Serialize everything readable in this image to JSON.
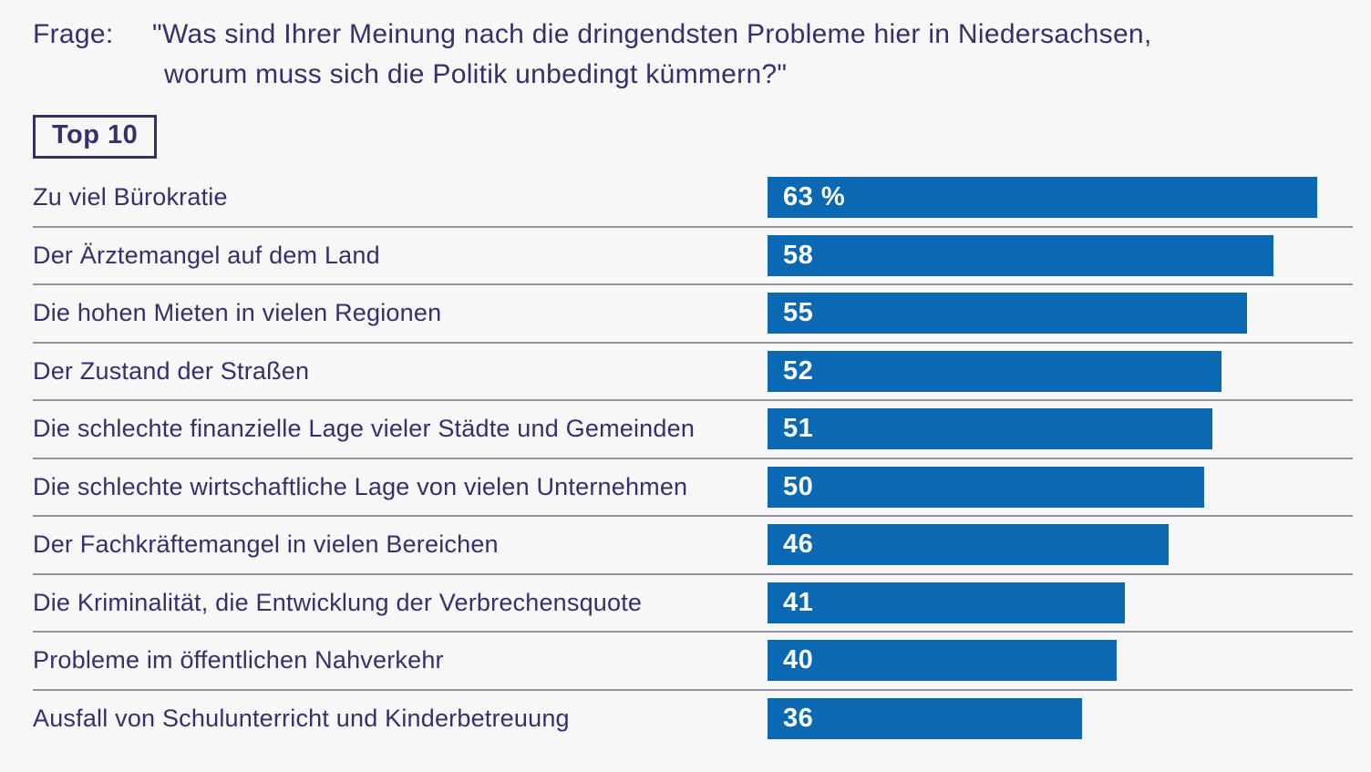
{
  "page": {
    "background_color": "#f7f7f8",
    "text_color": "#372f6b",
    "separator_color": "#9391a4"
  },
  "question": {
    "prefix": "Frage:",
    "line1": "\"Was sind Ihrer Meinung nach die dringendsten Probleme hier in Niedersachsen,",
    "line2": "worum muss sich die Politik unbedingt kümmern?\""
  },
  "badge": {
    "label": "Top 10"
  },
  "chart_data": {
    "type": "bar",
    "orientation": "horizontal",
    "title": "Frage: \"Was sind Ihrer Meinung nach die dringendsten Probleme hier in Niedersachsen, worum muss sich die Politik unbedingt kümmern?\"",
    "subtitle": "Top 10",
    "categories": [
      "Zu viel Bürokratie",
      "Der Ärztemangel auf dem Land",
      "Die hohen Mieten in vielen Regionen",
      "Der Zustand der Straßen",
      "Die schlechte finanzielle Lage vieler Städte und Gemeinden",
      "Die schlechte wirtschaftliche Lage von vielen Unternehmen",
      "Der Fachkräftemangel in vielen Bereichen",
      "Die Kriminalität, die Entwicklung der Verbrechensquote",
      "Probleme im öffentlichen Nahverkehr",
      "Ausfall von Schulunterricht und Kinderbetreuung"
    ],
    "values": [
      63,
      58,
      55,
      52,
      51,
      50,
      46,
      41,
      40,
      36
    ],
    "value_labels": [
      "63 %",
      "58",
      "55",
      "52",
      "51",
      "50",
      "46",
      "41",
      "40",
      "36"
    ],
    "unit": "%",
    "xlim": [
      0,
      63
    ],
    "grid": false,
    "legend": false,
    "bar_color": "#0b68b3",
    "value_label_color": "#ffffff"
  }
}
